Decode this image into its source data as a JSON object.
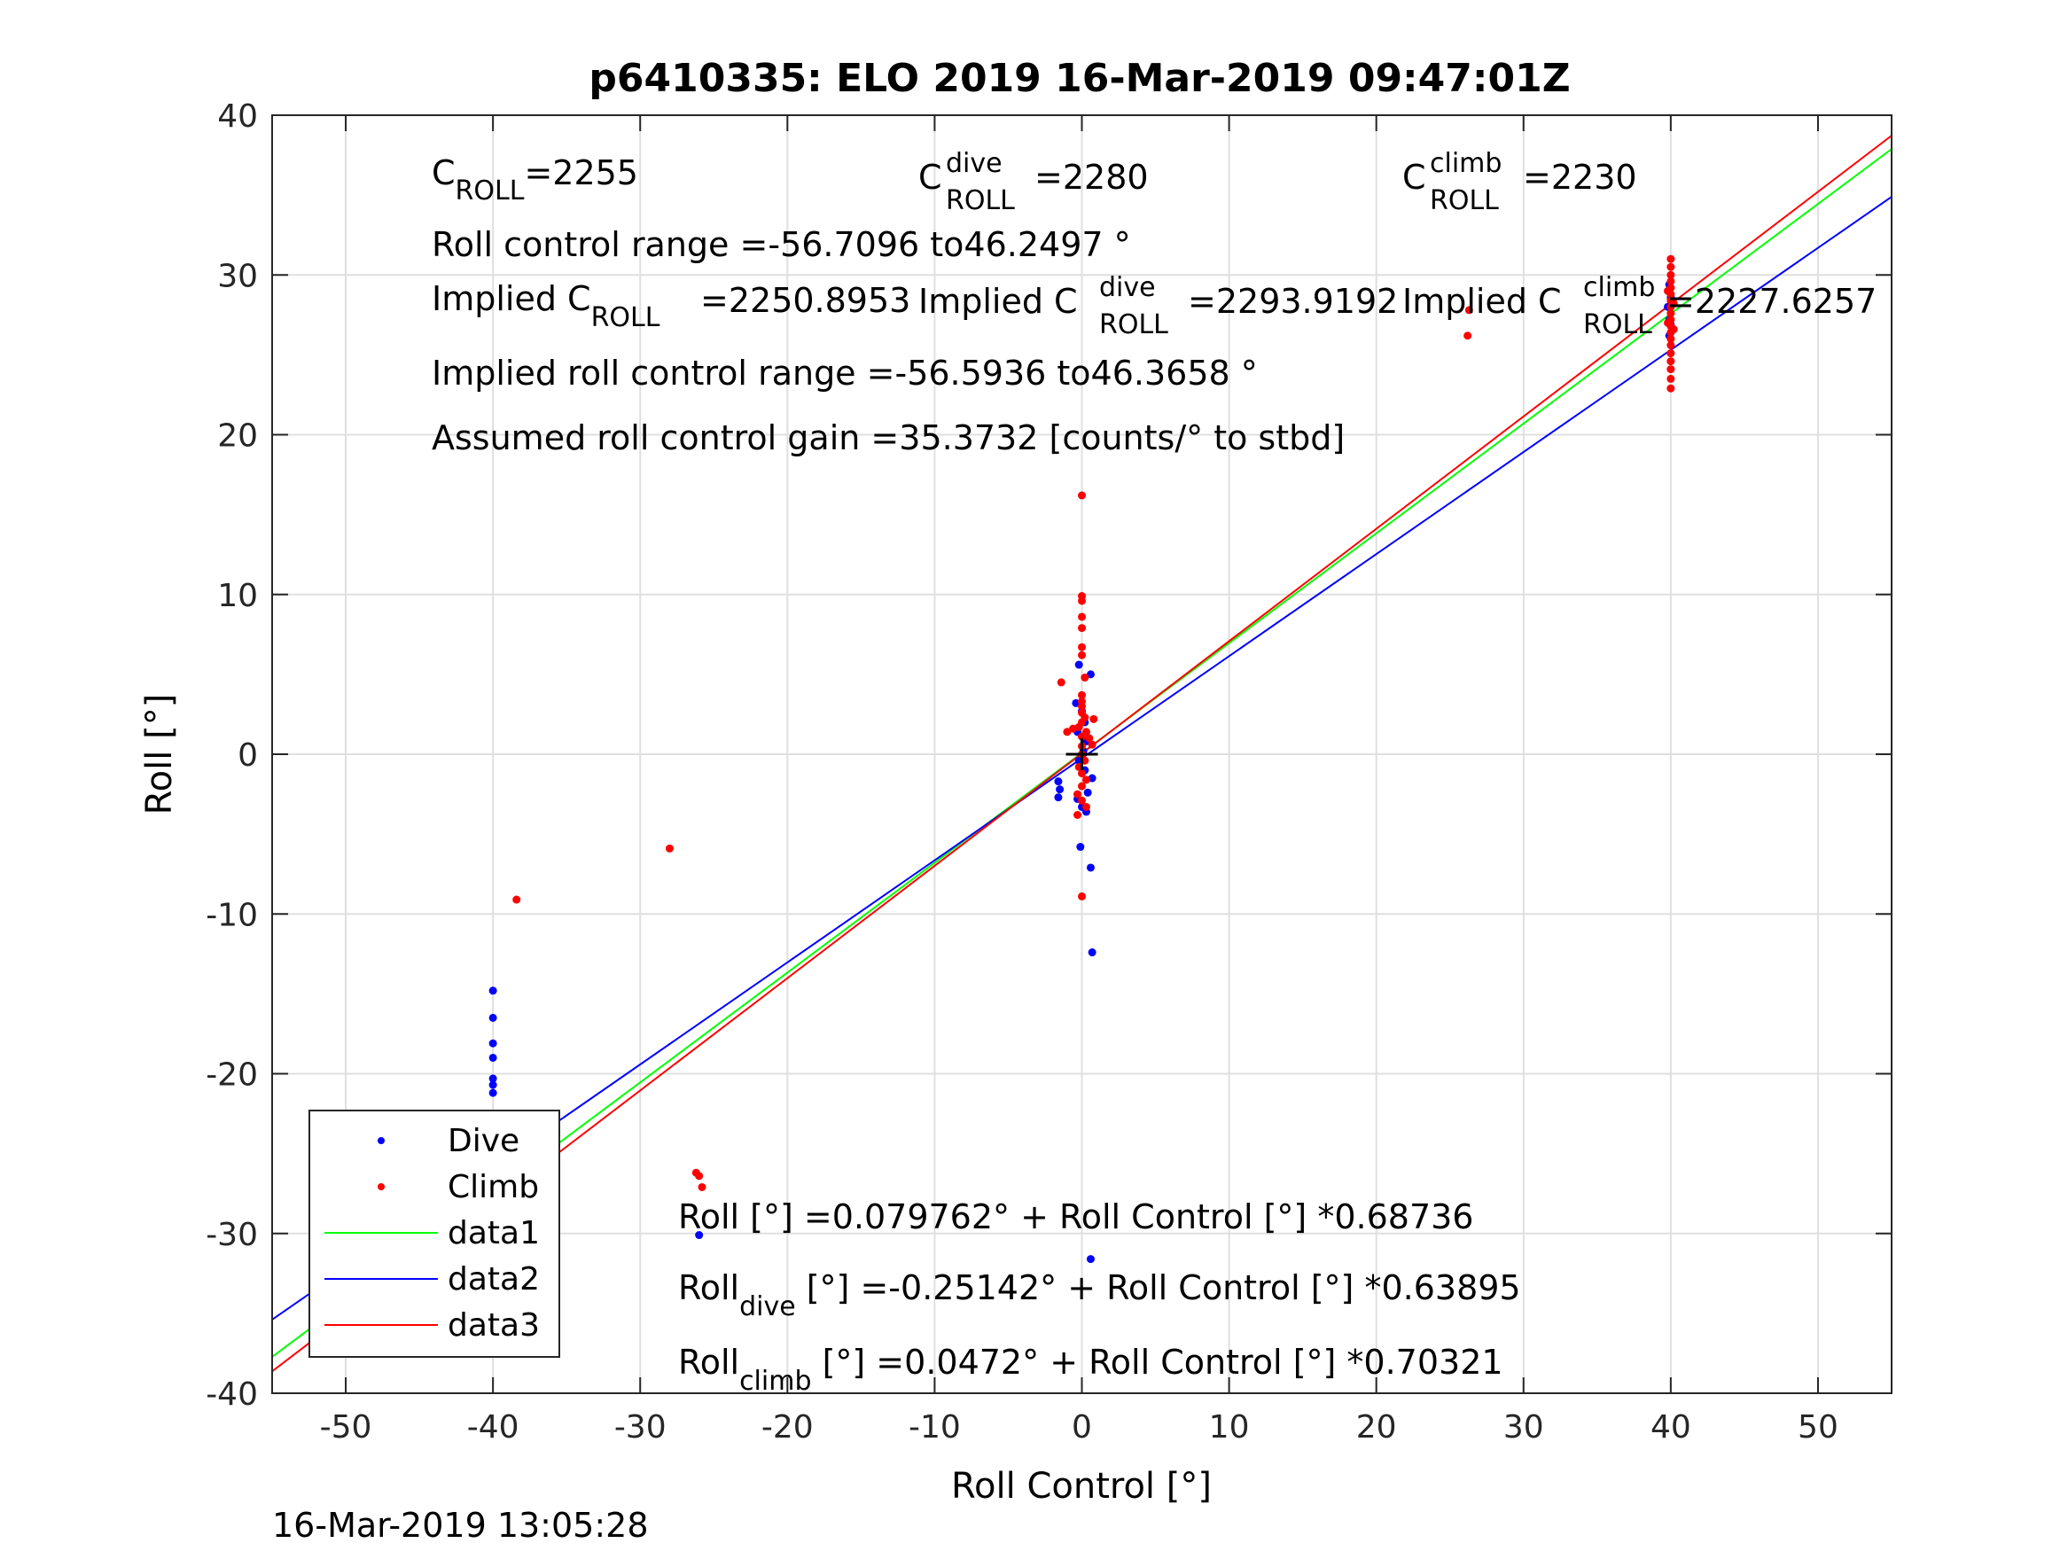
{
  "figure": {
    "title": "p6410335: ELO 2019 16-Mar-2019 09:47:01Z",
    "footer_timestamp": "16-Mar-2019 13:05:28"
  },
  "chart_data": {
    "type": "scatter",
    "xlabel": "Roll Control [°]",
    "ylabel": "Roll [°]",
    "xlim": [
      -55,
      55
    ],
    "ylim": [
      -40,
      40
    ],
    "xticks": [
      -50,
      -40,
      -30,
      -20,
      -10,
      0,
      10,
      20,
      30,
      40,
      50
    ],
    "yticks": [
      -40,
      -30,
      -20,
      -10,
      0,
      10,
      20,
      30,
      40
    ],
    "grid": true,
    "legend_position": "bottom-left",
    "colors": {
      "dive": "#0000ff",
      "climb": "#ff0000",
      "data1": "#00ff00",
      "data2": "#0000ff",
      "data3": "#ff0000",
      "center": "#000000"
    },
    "center_marker": {
      "x": 0,
      "y": 0,
      "shape": "plus"
    },
    "series": [
      {
        "name": "Dive",
        "kind": "points",
        "color": "#0000ff",
        "points": [
          [
            -40,
            -14.8
          ],
          [
            -40,
            -16.5
          ],
          [
            -40,
            -18.1
          ],
          [
            -40,
            -19.0
          ],
          [
            -40,
            -20.3
          ],
          [
            -40,
            -20.7
          ],
          [
            -40,
            -21.2
          ],
          [
            -40,
            -23.2
          ],
          [
            -40,
            -24.1
          ],
          [
            -40,
            -25.0
          ],
          [
            -40,
            -25.6
          ],
          [
            -40,
            -26.2
          ],
          [
            -40,
            -26.8
          ],
          [
            -40,
            -27.4
          ],
          [
            -40,
            -28.0
          ],
          [
            -40,
            -28.7
          ],
          [
            -40,
            -29.3
          ],
          [
            -40,
            -30.1
          ],
          [
            -40,
            -31.0
          ],
          [
            -39.8,
            -27.0
          ],
          [
            -39.6,
            -28.2
          ],
          [
            -26,
            -30.1
          ],
          [
            0.6,
            -31.6
          ],
          [
            0.7,
            -12.4
          ],
          [
            0.6,
            -7.1
          ],
          [
            -0.1,
            -5.8
          ],
          [
            0.6,
            5.0
          ],
          [
            -0.2,
            5.6
          ],
          [
            -1.6,
            -1.7
          ],
          [
            -1.5,
            -2.2
          ],
          [
            -1.6,
            -2.7
          ],
          [
            0,
            -3.3
          ],
          [
            0.3,
            -3.6
          ],
          [
            -0.3,
            -2.8
          ],
          [
            0.4,
            -2.4
          ],
          [
            0.7,
            -1.5
          ],
          [
            0.2,
            -1.0
          ],
          [
            -0.2,
            -0.4
          ],
          [
            0.1,
            0.2
          ],
          [
            0.3,
            0.8
          ],
          [
            -0.3,
            1.4
          ],
          [
            0.2,
            2.0
          ],
          [
            0,
            2.7
          ],
          [
            -0.4,
            3.2
          ],
          [
            39.9,
            26.2
          ],
          [
            39.9,
            27.2
          ],
          [
            39.8,
            28.0
          ],
          [
            40.0,
            26.9
          ],
          [
            40.0,
            28.6
          ],
          [
            39.9,
            29.4
          ]
        ]
      },
      {
        "name": "Climb",
        "kind": "points",
        "color": "#ff0000",
        "points": [
          [
            -40,
            -25.0
          ],
          [
            -40,
            -25.8
          ],
          [
            -40,
            -26.7
          ],
          [
            -40,
            -27.5
          ],
          [
            -40,
            -28.4
          ],
          [
            -40,
            -29.2
          ],
          [
            -40,
            -29.9
          ],
          [
            -40,
            -30.5
          ],
          [
            -40,
            -31.1
          ],
          [
            -40,
            -31.6
          ],
          [
            -40,
            -32.3
          ],
          [
            -40,
            -34.0
          ],
          [
            -39.6,
            -27.8
          ],
          [
            -39.5,
            -30.6
          ],
          [
            -40.3,
            -29.0
          ],
          [
            -38.4,
            -9.1
          ],
          [
            -28.0,
            -5.9
          ],
          [
            -26.2,
            -26.2
          ],
          [
            -26.0,
            -26.4
          ],
          [
            -25.8,
            -27.1
          ],
          [
            26.2,
            26.2
          ],
          [
            26.3,
            27.8
          ],
          [
            0,
            16.2
          ],
          [
            0,
            9.9
          ],
          [
            0,
            9.6
          ],
          [
            0,
            8.6
          ],
          [
            0,
            7.9
          ],
          [
            0,
            6.7
          ],
          [
            0,
            6.2
          ],
          [
            -1.4,
            4.5
          ],
          [
            0.2,
            4.8
          ],
          [
            0,
            3.7
          ],
          [
            0,
            3.3
          ],
          [
            0,
            3.0
          ],
          [
            0,
            2.6
          ],
          [
            0.2,
            2.3
          ],
          [
            0,
            2.0
          ],
          [
            -0.2,
            1.7
          ],
          [
            0.3,
            1.4
          ],
          [
            0,
            1.1
          ],
          [
            -0.6,
            1.6
          ],
          [
            0.5,
            1.0
          ],
          [
            0.7,
            0.6
          ],
          [
            0,
            0.5
          ],
          [
            0,
            0.0
          ],
          [
            0.2,
            -0.4
          ],
          [
            -0.2,
            -0.8
          ],
          [
            0,
            -1.2
          ],
          [
            0.3,
            -1.6
          ],
          [
            0,
            -2.0
          ],
          [
            -0.3,
            -2.5
          ],
          [
            0,
            -2.9
          ],
          [
            0.3,
            -3.3
          ],
          [
            -0.3,
            -3.8
          ],
          [
            0,
            -8.9
          ],
          [
            -1.0,
            1.4
          ],
          [
            0.8,
            2.2
          ],
          [
            40,
            22.9
          ],
          [
            40,
            23.5
          ],
          [
            40,
            24.1
          ],
          [
            40,
            24.6
          ],
          [
            40,
            25.1
          ],
          [
            40,
            25.6
          ],
          [
            40,
            26.0
          ],
          [
            40,
            26.4
          ],
          [
            40,
            26.8
          ],
          [
            40,
            27.2
          ],
          [
            40,
            27.6
          ],
          [
            40,
            28.0
          ],
          [
            40,
            28.4
          ],
          [
            40,
            28.8
          ],
          [
            40,
            29.2
          ],
          [
            40,
            29.6
          ],
          [
            40,
            30.0
          ],
          [
            40,
            30.5
          ],
          [
            40,
            31.0
          ],
          [
            39.8,
            27.0
          ],
          [
            40.2,
            28.2
          ],
          [
            39.8,
            29.0
          ],
          [
            40.2,
            26.6
          ]
        ]
      },
      {
        "name": "data1",
        "kind": "line",
        "color": "#00ff00",
        "intercept": 0.079762,
        "slope": 0.68736
      },
      {
        "name": "data2",
        "kind": "line",
        "color": "#0000ff",
        "intercept": -0.25142,
        "slope": 0.63895
      },
      {
        "name": "data3",
        "kind": "line",
        "color": "#ff0000",
        "intercept": 0.0472,
        "slope": 0.70321
      }
    ],
    "annotations": {
      "c_roll": {
        "main": "C",
        "sub": "ROLL",
        "value": "=2255"
      },
      "c_roll_dive": {
        "main": "C",
        "sup": "dive",
        "sub": "ROLL",
        "value": "=2280"
      },
      "c_roll_climb": {
        "main": "C",
        "sup": "climb",
        "sub": "ROLL",
        "value": "=2230"
      },
      "roll_control_range": "Roll control range =-56.7096 to46.2497 °",
      "implied_c_roll": {
        "main": "Implied C",
        "sub": "ROLL",
        "value": "=2250.8953"
      },
      "implied_c_roll_dive": {
        "main": "Implied C",
        "sup": "dive",
        "sub": "ROLL",
        "value": "=2293.9192"
      },
      "implied_c_roll_climb": {
        "main": "Implied C",
        "sup": "climb",
        "sub": "ROLL",
        "value": "=2227.6257"
      },
      "implied_range": "Implied roll control range =-56.5936 to46.3658 °",
      "assumed_gain": "Assumed roll control gain =35.3732 [counts/° to stbd]",
      "fit_all": {
        "main": "Roll",
        "rest": " [°] =0.079762° + Roll Control [°] *0.68736"
      },
      "fit_dive": {
        "main": "Roll",
        "sub": "dive",
        "rest": " [°] =-0.25142° + Roll Control [°] *0.63895"
      },
      "fit_climb": {
        "main": "Roll",
        "sub": "climb",
        "rest": " [°] =0.0472° + Roll Control [°] *0.70321"
      }
    }
  }
}
